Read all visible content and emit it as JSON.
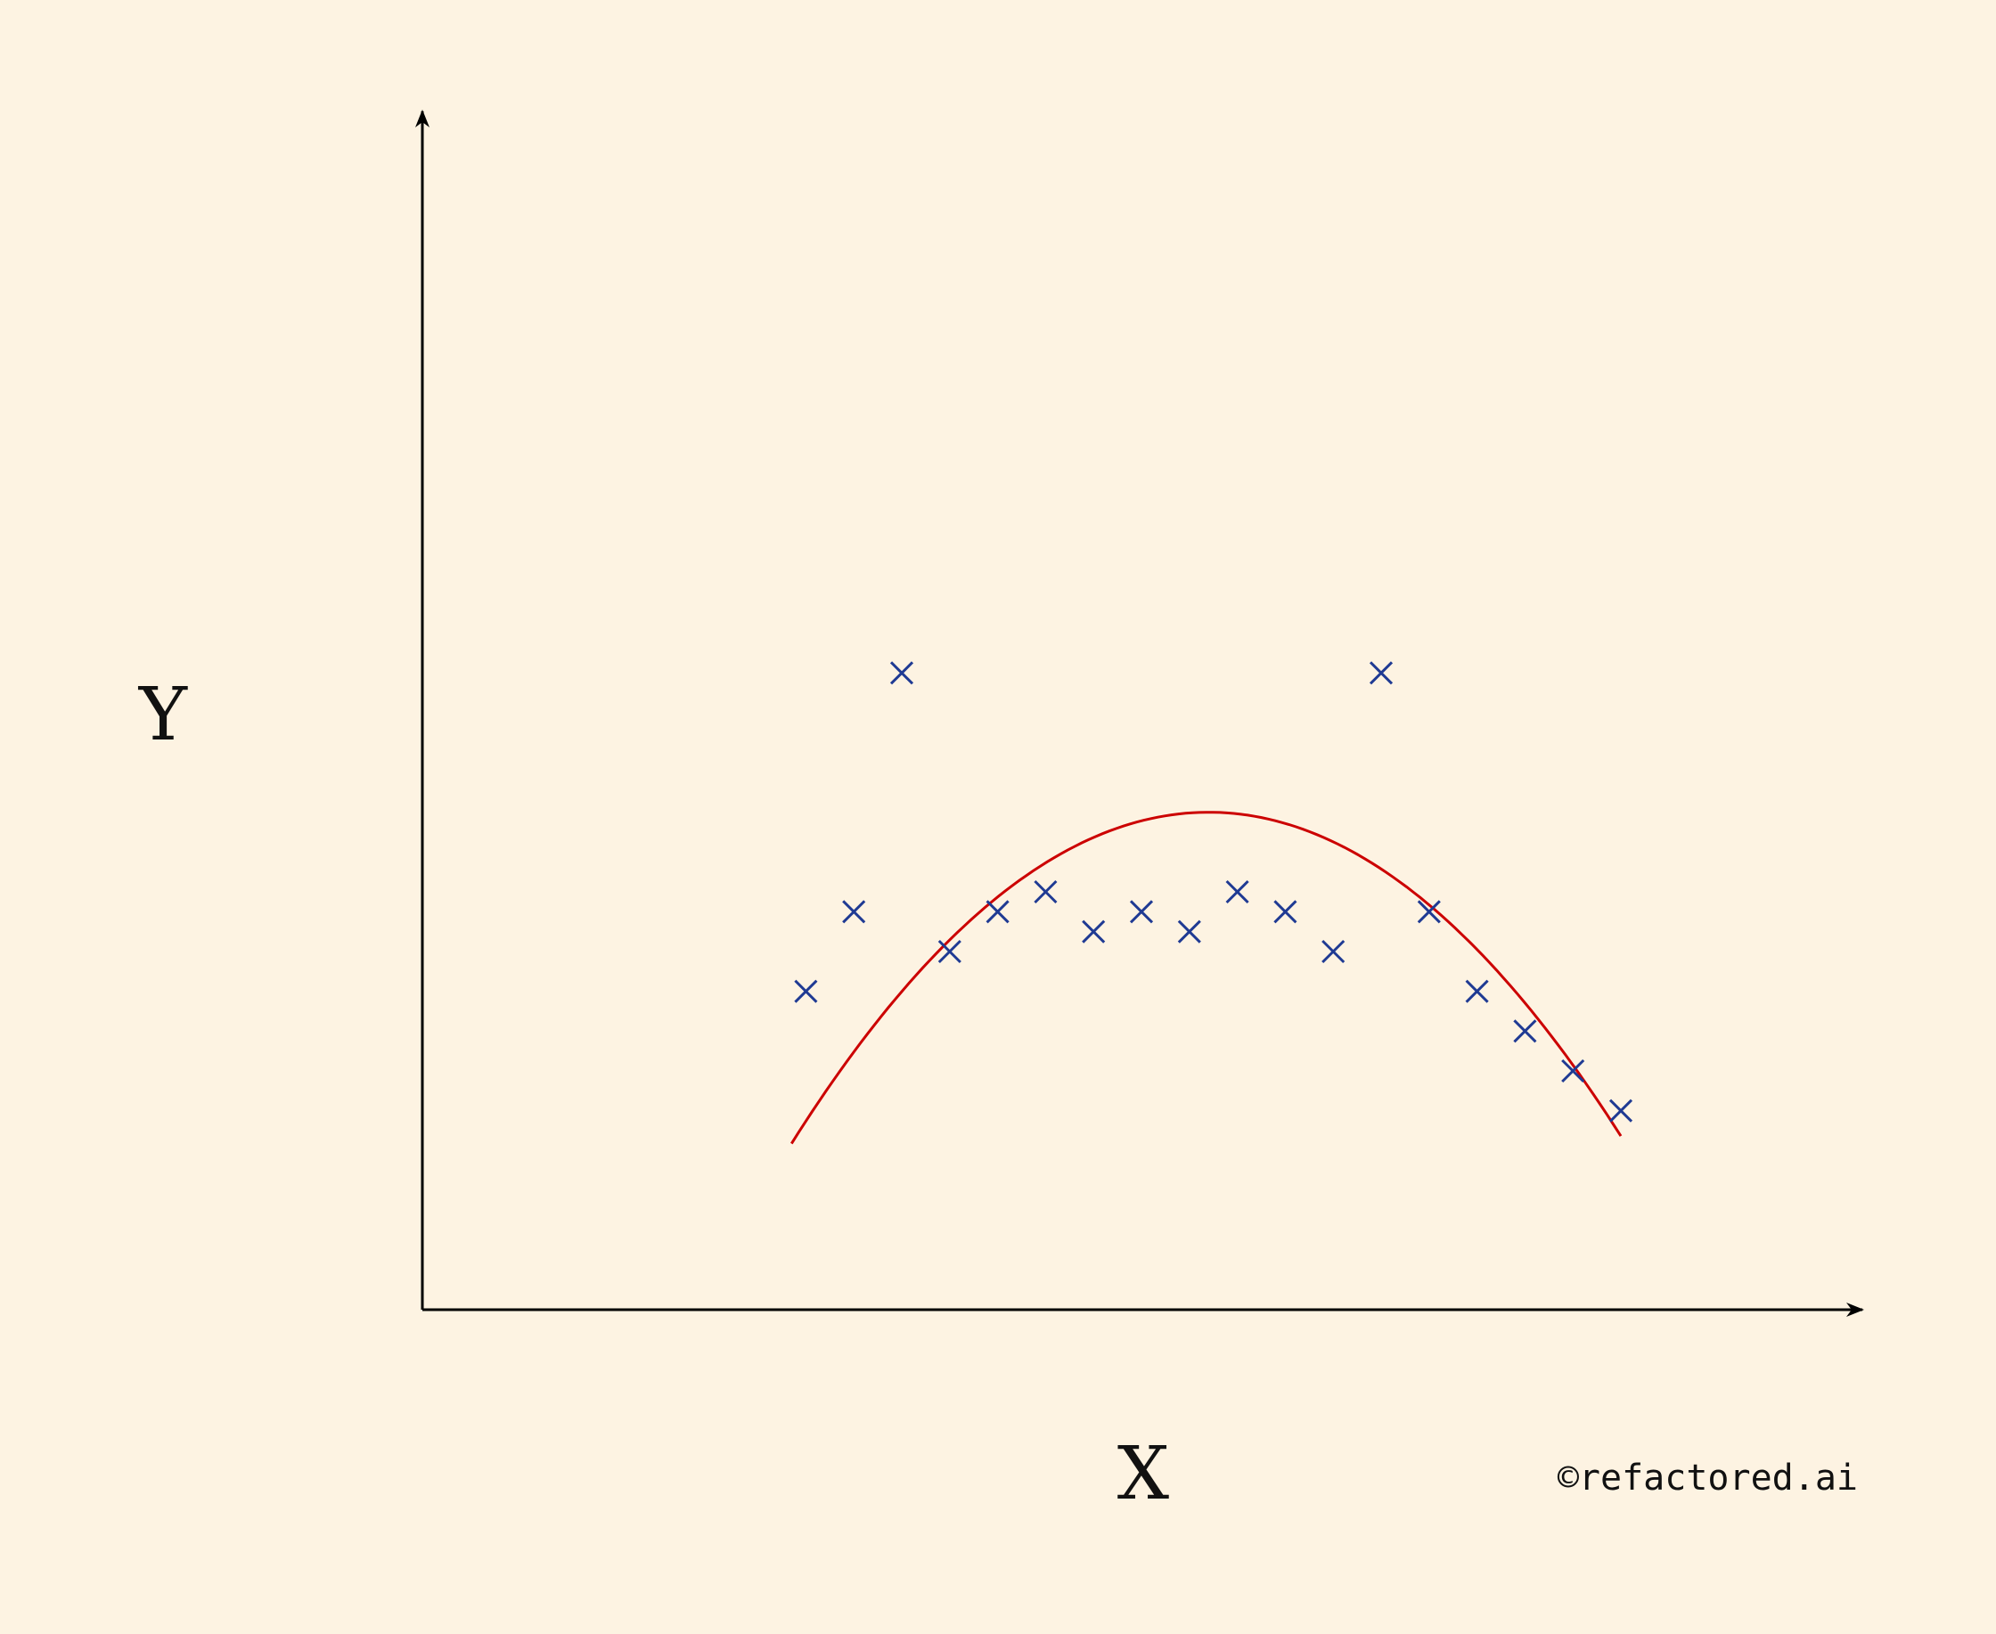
{
  "chart_data": {
    "type": "scatter",
    "title": "",
    "xlabel": "X",
    "ylabel": "Y",
    "xlim": [
      0,
      30
    ],
    "ylim": [
      0,
      30
    ],
    "grid": false,
    "legend": "none",
    "credit": "©refactored.ai",
    "points": {
      "marker": "x",
      "color": "#1f3a93",
      "x": [
        8,
        9,
        10,
        11,
        12,
        13,
        14,
        15,
        16,
        17,
        18,
        19,
        20,
        21,
        22,
        23,
        24,
        25
      ],
      "y": [
        8,
        10,
        16,
        9,
        10,
        10.5,
        9.5,
        10,
        9.5,
        10.5,
        10,
        9,
        16,
        10,
        8,
        7,
        6,
        5
      ]
    },
    "curve": {
      "color": "#cc0000",
      "vertex": [
        16.4,
        12.5
      ],
      "a": -0.11,
      "x_range": [
        7.7,
        25
      ]
    }
  },
  "colors": {
    "background": "#fdf3e2",
    "axis": "#000000",
    "points": "#1f3a93",
    "curve": "#cc0000"
  }
}
